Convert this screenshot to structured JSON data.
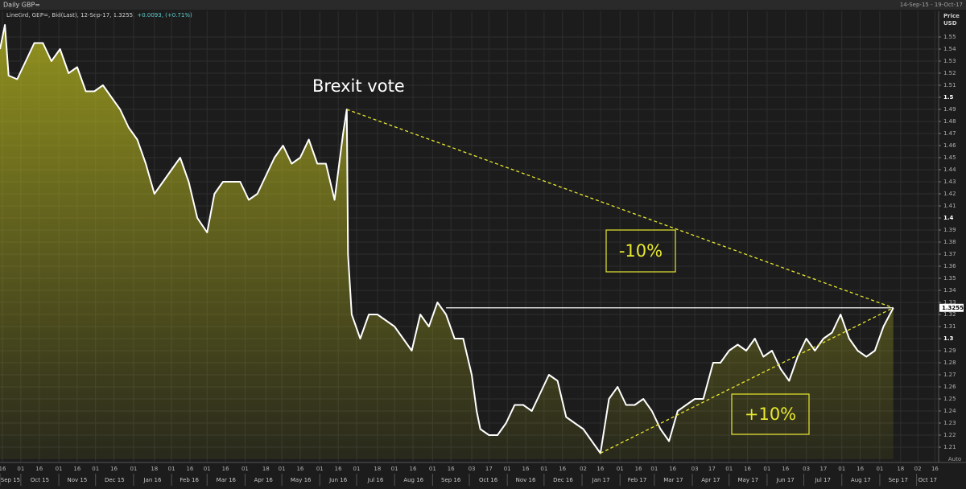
{
  "chart_data": {
    "type": "line",
    "title": "Daily GBP=",
    "date_range": "14-Sep-15 - 19-Oct-17",
    "legend_text": "LineGrd, GBP=, Bid(Last), 12-Sep-17, 1.3255,",
    "legend_change": "+0.0093, (+0.71%)",
    "y_axis_label": [
      "Price",
      "USD"
    ],
    "auto_label": "Auto",
    "last_value": 1.3255,
    "grid": true,
    "xlim": [
      "2015-09-14",
      "2017-10-19"
    ],
    "ylim": [
      1.2,
      1.56
    ],
    "yticks": [
      1.21,
      1.22,
      1.23,
      1.24,
      1.25,
      1.26,
      1.27,
      1.28,
      1.29,
      1.3,
      1.31,
      1.32,
      1.33,
      1.34,
      1.35,
      1.36,
      1.37,
      1.38,
      1.39,
      1.4,
      1.41,
      1.42,
      1.43,
      1.44,
      1.45,
      1.46,
      1.47,
      1.48,
      1.49,
      1.5,
      1.51,
      1.52,
      1.53,
      1.54,
      1.55
    ],
    "xticks": [
      {
        "value": "2015-09-16",
        "label": "16"
      },
      {
        "value": "2015-10-01",
        "label": "01"
      },
      {
        "value": "2015-10-16",
        "label": "16"
      },
      {
        "value": "2015-11-01",
        "label": "01"
      },
      {
        "value": "2015-11-16",
        "label": "16"
      },
      {
        "value": "2015-12-01",
        "label": "01"
      },
      {
        "value": "2015-12-16",
        "label": "16"
      },
      {
        "value": "2016-01-01",
        "label": "01"
      },
      {
        "value": "2016-01-18",
        "label": "18"
      },
      {
        "value": "2016-02-01",
        "label": "01"
      },
      {
        "value": "2016-02-16",
        "label": "16"
      },
      {
        "value": "2016-03-01",
        "label": "01"
      },
      {
        "value": "2016-03-16",
        "label": "16"
      },
      {
        "value": "2016-04-01",
        "label": "01"
      },
      {
        "value": "2016-04-18",
        "label": "18"
      },
      {
        "value": "2016-05-01",
        "label": "01"
      },
      {
        "value": "2016-05-16",
        "label": "16"
      },
      {
        "value": "2016-06-01",
        "label": "01"
      },
      {
        "value": "2016-06-16",
        "label": "16"
      },
      {
        "value": "2016-07-01",
        "label": "01"
      },
      {
        "value": "2016-07-18",
        "label": "18"
      },
      {
        "value": "2016-08-01",
        "label": "01"
      },
      {
        "value": "2016-08-16",
        "label": "16"
      },
      {
        "value": "2016-09-01",
        "label": "01"
      },
      {
        "value": "2016-09-16",
        "label": "16"
      },
      {
        "value": "2016-10-03",
        "label": "03"
      },
      {
        "value": "2016-10-17",
        "label": "17"
      },
      {
        "value": "2016-11-01",
        "label": "01"
      },
      {
        "value": "2016-11-16",
        "label": "16"
      },
      {
        "value": "2016-12-01",
        "label": "01"
      },
      {
        "value": "2016-12-16",
        "label": "16"
      },
      {
        "value": "2017-01-02",
        "label": "02"
      },
      {
        "value": "2017-01-16",
        "label": "16"
      },
      {
        "value": "2017-02-01",
        "label": "01"
      },
      {
        "value": "2017-02-16",
        "label": "16"
      },
      {
        "value": "2017-03-01",
        "label": "01"
      },
      {
        "value": "2017-03-16",
        "label": "16"
      },
      {
        "value": "2017-04-03",
        "label": "03"
      },
      {
        "value": "2017-04-17",
        "label": "17"
      },
      {
        "value": "2017-05-01",
        "label": "01"
      },
      {
        "value": "2017-05-16",
        "label": "16"
      },
      {
        "value": "2017-06-01",
        "label": "01"
      },
      {
        "value": "2017-06-16",
        "label": "16"
      },
      {
        "value": "2017-07-03",
        "label": "03"
      },
      {
        "value": "2017-07-17",
        "label": "17"
      },
      {
        "value": "2017-08-01",
        "label": "01"
      },
      {
        "value": "2017-08-16",
        "label": "16"
      },
      {
        "value": "2017-09-01",
        "label": "01"
      },
      {
        "value": "2017-09-18",
        "label": "18"
      },
      {
        "value": "2017-10-02",
        "label": "02"
      },
      {
        "value": "2017-10-16",
        "label": "16"
      }
    ],
    "month_labels": [
      {
        "value": "2015-09-01",
        "label": "Sep 15"
      },
      {
        "value": "2015-10-01",
        "label": "Oct 15"
      },
      {
        "value": "2015-11-01",
        "label": "Nov 15"
      },
      {
        "value": "2015-12-01",
        "label": "Dec 15"
      },
      {
        "value": "2016-01-01",
        "label": "Jan 16"
      },
      {
        "value": "2016-02-01",
        "label": "Feb 16"
      },
      {
        "value": "2016-03-01",
        "label": "Mar 16"
      },
      {
        "value": "2016-04-01",
        "label": "Apr 16"
      },
      {
        "value": "2016-05-01",
        "label": "May 16"
      },
      {
        "value": "2016-06-01",
        "label": "Jun 16"
      },
      {
        "value": "2016-07-01",
        "label": "Jul 16"
      },
      {
        "value": "2016-08-01",
        "label": "Aug 16"
      },
      {
        "value": "2016-09-01",
        "label": "Sep 16"
      },
      {
        "value": "2016-10-01",
        "label": "Oct 16"
      },
      {
        "value": "2016-11-01",
        "label": "Nov 16"
      },
      {
        "value": "2016-12-01",
        "label": "Dec 16"
      },
      {
        "value": "2017-01-01",
        "label": "Jan 17"
      },
      {
        "value": "2017-02-01",
        "label": "Feb 17"
      },
      {
        "value": "2017-03-01",
        "label": "Mar 17"
      },
      {
        "value": "2017-04-01",
        "label": "Apr 17"
      },
      {
        "value": "2017-05-01",
        "label": "May 17"
      },
      {
        "value": "2017-06-01",
        "label": "Jun 17"
      },
      {
        "value": "2017-07-01",
        "label": "Jul 17"
      },
      {
        "value": "2017-08-01",
        "label": "Aug 17"
      },
      {
        "value": "2017-09-01",
        "label": "Sep 17"
      },
      {
        "value": "2017-10-01",
        "label": "Oct 17"
      }
    ],
    "x": [
      "2015-09-14",
      "2015-09-18",
      "2015-09-21",
      "2015-09-28",
      "2015-10-05",
      "2015-10-12",
      "2015-10-19",
      "2015-10-26",
      "2015-11-02",
      "2015-11-09",
      "2015-11-16",
      "2015-11-23",
      "2015-11-30",
      "2015-12-07",
      "2015-12-14",
      "2015-12-21",
      "2015-12-28",
      "2016-01-04",
      "2016-01-11",
      "2016-01-18",
      "2016-01-25",
      "2016-02-01",
      "2016-02-08",
      "2016-02-15",
      "2016-02-22",
      "2016-03-01",
      "2016-03-07",
      "2016-03-14",
      "2016-03-21",
      "2016-03-28",
      "2016-04-04",
      "2016-04-11",
      "2016-04-18",
      "2016-04-25",
      "2016-05-02",
      "2016-05-09",
      "2016-05-16",
      "2016-05-23",
      "2016-05-30",
      "2016-06-06",
      "2016-06-13",
      "2016-06-20",
      "2016-06-23",
      "2016-06-24",
      "2016-06-27",
      "2016-07-04",
      "2016-07-11",
      "2016-07-18",
      "2016-07-25",
      "2016-08-01",
      "2016-08-08",
      "2016-08-15",
      "2016-08-22",
      "2016-08-29",
      "2016-09-05",
      "2016-09-12",
      "2016-09-19",
      "2016-09-26",
      "2016-10-03",
      "2016-10-07",
      "2016-10-10",
      "2016-10-17",
      "2016-10-24",
      "2016-10-31",
      "2016-11-07",
      "2016-11-14",
      "2016-11-21",
      "2016-11-28",
      "2016-12-05",
      "2016-12-12",
      "2016-12-19",
      "2016-12-26",
      "2017-01-02",
      "2017-01-09",
      "2017-01-16",
      "2017-01-23",
      "2017-01-30",
      "2017-02-06",
      "2017-02-13",
      "2017-02-20",
      "2017-02-27",
      "2017-03-06",
      "2017-03-13",
      "2017-03-20",
      "2017-03-27",
      "2017-04-03",
      "2017-04-10",
      "2017-04-18",
      "2017-04-24",
      "2017-05-01",
      "2017-05-08",
      "2017-05-15",
      "2017-05-22",
      "2017-05-29",
      "2017-06-05",
      "2017-06-12",
      "2017-06-19",
      "2017-06-26",
      "2017-07-03",
      "2017-07-10",
      "2017-07-17",
      "2017-07-24",
      "2017-07-31",
      "2017-08-07",
      "2017-08-14",
      "2017-08-21",
      "2017-08-28",
      "2017-09-04",
      "2017-09-12"
    ],
    "series": [
      {
        "name": "GBP=",
        "color": "#ffffff",
        "fill": "#b8b820",
        "values": [
          1.54,
          1.56,
          1.518,
          1.515,
          1.53,
          1.545,
          1.545,
          1.53,
          1.54,
          1.52,
          1.525,
          1.505,
          1.505,
          1.51,
          1.5,
          1.49,
          1.475,
          1.465,
          1.445,
          1.42,
          1.43,
          1.44,
          1.45,
          1.43,
          1.4,
          1.388,
          1.42,
          1.43,
          1.43,
          1.43,
          1.415,
          1.42,
          1.435,
          1.45,
          1.46,
          1.445,
          1.45,
          1.465,
          1.445,
          1.445,
          1.415,
          1.47,
          1.49,
          1.37,
          1.32,
          1.3,
          1.32,
          1.32,
          1.315,
          1.31,
          1.3,
          1.29,
          1.32,
          1.31,
          1.33,
          1.32,
          1.3,
          1.3,
          1.27,
          1.24,
          1.225,
          1.22,
          1.22,
          1.23,
          1.245,
          1.245,
          1.24,
          1.255,
          1.27,
          1.265,
          1.235,
          1.23,
          1.225,
          1.215,
          1.205,
          1.25,
          1.26,
          1.245,
          1.245,
          1.25,
          1.24,
          1.225,
          1.215,
          1.24,
          1.245,
          1.25,
          1.25,
          1.28,
          1.28,
          1.29,
          1.295,
          1.29,
          1.3,
          1.285,
          1.29,
          1.275,
          1.265,
          1.285,
          1.3,
          1.29,
          1.3,
          1.305,
          1.32,
          1.3,
          1.29,
          1.285,
          1.29,
          1.31,
          1.3255
        ]
      }
    ],
    "reference_lines": [
      {
        "x": [
          "2016-06-23",
          "2017-09-12"
        ],
        "y": [
          1.49,
          1.3255
        ],
        "color": "#e8e830",
        "dashed": true
      },
      {
        "x": [
          "2017-01-16",
          "2017-09-12"
        ],
        "y": [
          1.205,
          1.3255
        ],
        "color": "#e8e830",
        "dashed": true
      },
      {
        "x": [
          "2016-09-12",
          "2017-09-12"
        ],
        "y": [
          1.3255,
          1.3255
        ],
        "color": "#ffffff",
        "dashed": false
      }
    ],
    "annotations": [
      "Brexit vote",
      "-10%",
      "+10%"
    ]
  }
}
